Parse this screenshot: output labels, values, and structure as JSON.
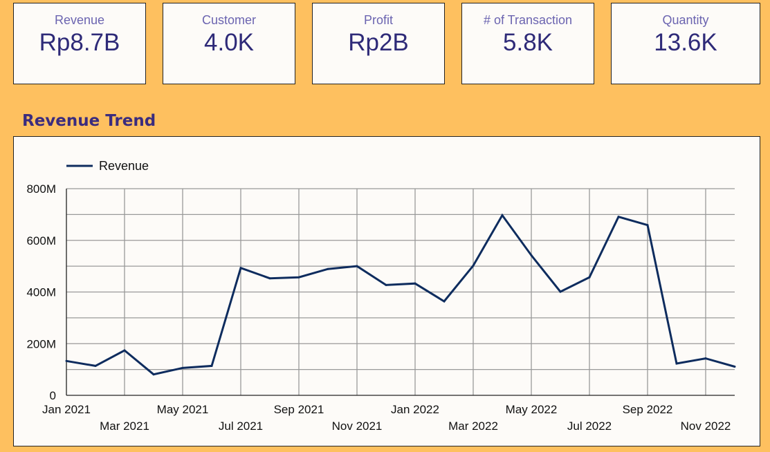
{
  "kpis": {
    "revenue": {
      "label": "Revenue",
      "value": "Rp8.7B"
    },
    "customer": {
      "label": "Customer",
      "value": "4.0K"
    },
    "profit": {
      "label": "Profit",
      "value": "Rp2B"
    },
    "transactions": {
      "label": "# of Transaction",
      "value": "5.8K"
    },
    "quantity": {
      "label": "Quantity",
      "value": "13.6K"
    }
  },
  "section_title": "Revenue Trend",
  "colors": {
    "background": "#fec05f",
    "panel": "#fdfbf8",
    "line": "#0e2c5e",
    "kpi_label": "#6b64b0",
    "kpi_value": "#2e2a78",
    "title": "#3b2c7e"
  },
  "chart_data": {
    "type": "line",
    "title": "",
    "xlabel": "",
    "ylabel": "",
    "legend": "top-left",
    "grid": true,
    "ylim": [
      0,
      800000000
    ],
    "y_ticks": [
      0,
      200000000,
      400000000,
      600000000,
      800000000
    ],
    "y_tick_labels": [
      "0",
      "200M",
      "400M",
      "600M",
      "800M"
    ],
    "x": [
      "Jan 2021",
      "Feb 2021",
      "Mar 2021",
      "Apr 2021",
      "May 2021",
      "Jun 2021",
      "Jul 2021",
      "Aug 2021",
      "Sep 2021",
      "Oct 2021",
      "Nov 2021",
      "Dec 2021",
      "Jan 2022",
      "Feb 2022",
      "Mar 2022",
      "Apr 2022",
      "May 2022",
      "Jun 2022",
      "Jul 2022",
      "Aug 2022",
      "Sep 2022",
      "Oct 2022",
      "Nov 2022",
      "Dec 2022"
    ],
    "x_tick_labels": [
      "Jan 2021",
      "Mar 2021",
      "May 2021",
      "Jul 2021",
      "Sep 2021",
      "Nov 2021",
      "Jan 2022",
      "Mar 2022",
      "May 2022",
      "Jul 2022",
      "Sep 2022",
      "Nov 2022"
    ],
    "series": [
      {
        "name": "Revenue",
        "values": [
          133000000,
          114000000,
          174000000,
          81000000,
          106000000,
          114000000,
          493000000,
          453000000,
          457000000,
          489000000,
          500000000,
          427000000,
          433000000,
          364000000,
          502000000,
          697000000,
          542000000,
          401000000,
          457000000,
          691000000,
          659000000,
          123000000,
          143000000,
          111000000
        ]
      }
    ]
  }
}
